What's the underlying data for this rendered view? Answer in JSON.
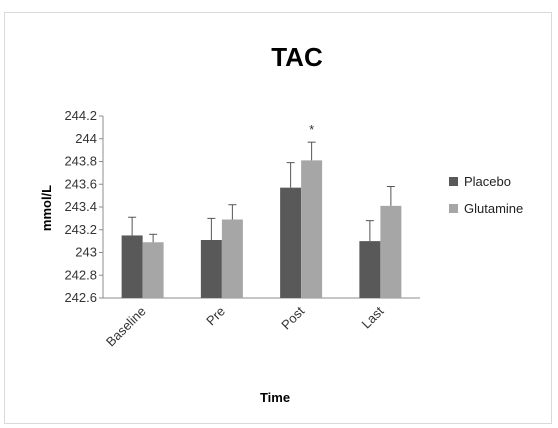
{
  "chart_data": {
    "type": "bar",
    "title": "TAC",
    "xlabel": "Time",
    "ylabel": "mmol/L",
    "categories": [
      "Baseline",
      "Pre",
      "Post",
      "Last"
    ],
    "ylim": [
      242.6,
      244.2
    ],
    "yticks": [
      "244.2",
      "244",
      "243.8",
      "243.6",
      "243.4",
      "243.2",
      "243",
      "242.8",
      "242.6"
    ],
    "ytick_values": [
      244.2,
      244.0,
      243.8,
      243.6,
      243.4,
      243.2,
      243.0,
      242.8,
      242.6
    ],
    "series": [
      {
        "name": "Placebo",
        "color": "#595959",
        "values": [
          243.15,
          243.11,
          243.57,
          243.1
        ],
        "errors": [
          0.16,
          0.19,
          0.22,
          0.18
        ]
      },
      {
        "name": "Glutamine",
        "color": "#a6a6a6",
        "values": [
          243.09,
          243.29,
          243.81,
          243.41
        ],
        "errors": [
          0.07,
          0.13,
          0.16,
          0.17
        ]
      }
    ],
    "annotations": [
      {
        "category": "Post",
        "series": "Glutamine",
        "text": "*"
      }
    ],
    "legend_position": "right",
    "grid": false
  }
}
